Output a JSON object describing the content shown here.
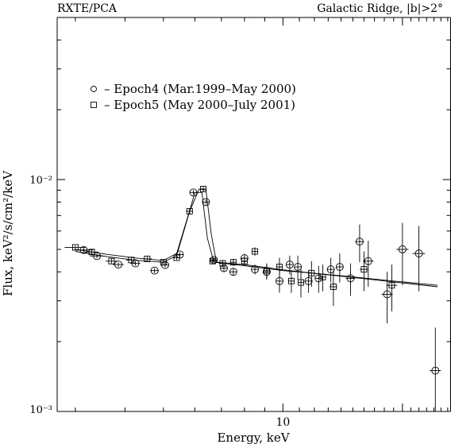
{
  "header": {
    "left": "RXTE/PCA",
    "right": "Galactic Ridge, |b|>2°"
  },
  "legend": {
    "placement": "upper-left",
    "entries": [
      {
        "marker": "circle",
        "label": "–  Epoch4 (Mar.1999–May 2000)"
      },
      {
        "marker": "square",
        "label": "– Epoch5 (May 2000–July 2001)"
      }
    ]
  },
  "axes": {
    "xlabel": "Energy, keV",
    "ylabel": "Flux, keV²/s/cm²/keV",
    "x_tick_label": "10",
    "y_tick_labels": [
      "10⁻²",
      "10⁻³"
    ]
  },
  "chart_data": {
    "type": "scatter",
    "x_scale": "log",
    "y_scale": "log",
    "xlim": [
      2.7,
      26.5
    ],
    "ylim": [
      0.001,
      0.05
    ],
    "grid": false,
    "legend": "upper-left",
    "series": [
      {
        "name": "Epoch4 (Mar.1999–May 2000)",
        "marker": "circle",
        "points": [
          {
            "x": 3.15,
            "y": 0.00497,
            "xerr": 0.18,
            "yerr": 0.0001
          },
          {
            "x": 3.4,
            "y": 0.00468,
            "xerr": 0.13,
            "yerr": 0.0001
          },
          {
            "x": 3.85,
            "y": 0.0043,
            "xerr": 0.12,
            "yerr": 0.0001
          },
          {
            "x": 4.25,
            "y": 0.00435,
            "xerr": 0.12,
            "yerr": 0.0001
          },
          {
            "x": 4.75,
            "y": 0.00405,
            "xerr": 0.12,
            "yerr": 0.0001
          },
          {
            "x": 5.05,
            "y": 0.00428,
            "xerr": 0.12,
            "yerr": 0.0001
          },
          {
            "x": 5.5,
            "y": 0.00475,
            "xerr": 0.12,
            "yerr": 0.0001
          },
          {
            "x": 5.95,
            "y": 0.0088,
            "xerr": 0.13,
            "yerr": 0.0002
          },
          {
            "x": 6.4,
            "y": 0.008,
            "xerr": 0.12,
            "yerr": 0.0002
          },
          {
            "x": 6.7,
            "y": 0.0045,
            "xerr": 0.12,
            "yerr": 0.0001
          },
          {
            "x": 7.1,
            "y": 0.00415,
            "xerr": 0.15,
            "yerr": 0.00015
          },
          {
            "x": 7.5,
            "y": 0.004,
            "xerr": 0.15,
            "yerr": 0.00015
          },
          {
            "x": 8.0,
            "y": 0.00458,
            "xerr": 0.15,
            "yerr": 0.0002
          },
          {
            "x": 8.5,
            "y": 0.0041,
            "xerr": 0.15,
            "yerr": 0.0002
          },
          {
            "x": 9.1,
            "y": 0.004,
            "xerr": 0.18,
            "yerr": 0.0003
          },
          {
            "x": 9.8,
            "y": 0.00365,
            "xerr": 0.18,
            "yerr": 0.0004
          },
          {
            "x": 10.4,
            "y": 0.0043,
            "xerr": 0.18,
            "yerr": 0.0004
          },
          {
            "x": 10.9,
            "y": 0.0042,
            "xerr": 0.2,
            "yerr": 0.0005
          },
          {
            "x": 11.6,
            "y": 0.00365,
            "xerr": 0.25,
            "yerr": 0.0004
          },
          {
            "x": 12.3,
            "y": 0.00375,
            "xerr": 0.25,
            "yerr": 0.0005
          },
          {
            "x": 13.2,
            "y": 0.0041,
            "xerr": 0.3,
            "yerr": 0.0005
          },
          {
            "x": 13.9,
            "y": 0.0042,
            "xerr": 0.3,
            "yerr": 0.0006
          },
          {
            "x": 14.8,
            "y": 0.00375,
            "xerr": 0.4,
            "yerr": 0.0006
          },
          {
            "x": 15.6,
            "y": 0.0054,
            "xerr": 0.4,
            "yerr": 0.001
          },
          {
            "x": 16.4,
            "y": 0.00445,
            "xerr": 0.5,
            "yerr": 0.001
          },
          {
            "x": 18.3,
            "y": 0.0032,
            "xerr": 0.6,
            "yerr": 0.0008
          },
          {
            "x": 20.0,
            "y": 0.005,
            "xerr": 0.7,
            "yerr": 0.0015
          },
          {
            "x": 22.0,
            "y": 0.0048,
            "xerr": 0.8,
            "yerr": 0.0015
          },
          {
            "x": 24.2,
            "y": 0.0015,
            "xerr": 0.8,
            "yerr": 0.0008
          }
        ]
      },
      {
        "name": "Epoch5 (May 2000–July 2001)",
        "marker": "square",
        "points": [
          {
            "x": 3.0,
            "y": 0.0051,
            "xerr": 0.18,
            "yerr": 0.0001
          },
          {
            "x": 3.3,
            "y": 0.00487,
            "xerr": 0.13,
            "yerr": 0.0001
          },
          {
            "x": 3.7,
            "y": 0.00445,
            "xerr": 0.12,
            "yerr": 0.0001
          },
          {
            "x": 4.15,
            "y": 0.0045,
            "xerr": 0.12,
            "yerr": 0.0001
          },
          {
            "x": 4.55,
            "y": 0.00455,
            "xerr": 0.12,
            "yerr": 0.0001
          },
          {
            "x": 5.0,
            "y": 0.0044,
            "xerr": 0.12,
            "yerr": 0.0001
          },
          {
            "x": 5.4,
            "y": 0.0046,
            "xerr": 0.12,
            "yerr": 0.0001
          },
          {
            "x": 5.82,
            "y": 0.0073,
            "xerr": 0.12,
            "yerr": 0.0002
          },
          {
            "x": 6.3,
            "y": 0.0091,
            "xerr": 0.12,
            "yerr": 0.0002
          },
          {
            "x": 6.65,
            "y": 0.00445,
            "xerr": 0.12,
            "yerr": 0.0001
          },
          {
            "x": 7.05,
            "y": 0.00435,
            "xerr": 0.15,
            "yerr": 0.00015
          },
          {
            "x": 7.5,
            "y": 0.0044,
            "xerr": 0.15,
            "yerr": 0.00015
          },
          {
            "x": 8.0,
            "y": 0.00445,
            "xerr": 0.15,
            "yerr": 0.0002
          },
          {
            "x": 8.5,
            "y": 0.0049,
            "xerr": 0.15,
            "yerr": 0.0002
          },
          {
            "x": 9.1,
            "y": 0.00405,
            "xerr": 0.18,
            "yerr": 0.0003
          },
          {
            "x": 9.8,
            "y": 0.0042,
            "xerr": 0.18,
            "yerr": 0.0004
          },
          {
            "x": 10.5,
            "y": 0.00365,
            "xerr": 0.2,
            "yerr": 0.0004
          },
          {
            "x": 11.1,
            "y": 0.0036,
            "xerr": 0.2,
            "yerr": 0.0005
          },
          {
            "x": 11.8,
            "y": 0.00395,
            "xerr": 0.25,
            "yerr": 0.0005
          },
          {
            "x": 12.6,
            "y": 0.0038,
            "xerr": 0.25,
            "yerr": 0.0005
          },
          {
            "x": 13.4,
            "y": 0.00345,
            "xerr": 0.3,
            "yerr": 0.0006
          },
          {
            "x": 16.0,
            "y": 0.0041,
            "xerr": 0.4,
            "yerr": 0.0008
          },
          {
            "x": 18.8,
            "y": 0.0035,
            "xerr": 0.6,
            "yerr": 0.0008
          }
        ]
      }
    ],
    "model_lines": [
      {
        "points": [
          [
            3.0,
            0.0049
          ],
          [
            3.6,
            0.00465
          ],
          [
            4.3,
            0.00448
          ],
          [
            5.0,
            0.0044
          ],
          [
            5.4,
            0.0047
          ],
          [
            5.75,
            0.0068
          ],
          [
            6.0,
            0.0088
          ],
          [
            6.25,
            0.0088
          ],
          [
            6.45,
            0.0056
          ],
          [
            6.7,
            0.0044
          ],
          [
            8.0,
            0.00425
          ],
          [
            10.0,
            0.00405
          ],
          [
            14.0,
            0.00385
          ],
          [
            19.0,
            0.00365
          ],
          [
            24.5,
            0.0035
          ]
        ]
      },
      {
        "points": [
          [
            3.0,
            0.005
          ],
          [
            3.6,
            0.00476
          ],
          [
            4.3,
            0.00458
          ],
          [
            5.0,
            0.00448
          ],
          [
            5.4,
            0.0048
          ],
          [
            5.8,
            0.0072
          ],
          [
            6.15,
            0.0091
          ],
          [
            6.4,
            0.009
          ],
          [
            6.6,
            0.0058
          ],
          [
            6.8,
            0.0044
          ],
          [
            8.0,
            0.0043
          ],
          [
            10.0,
            0.00408
          ],
          [
            14.0,
            0.00383
          ],
          [
            19.0,
            0.00362
          ],
          [
            24.5,
            0.00345
          ]
        ]
      }
    ]
  }
}
